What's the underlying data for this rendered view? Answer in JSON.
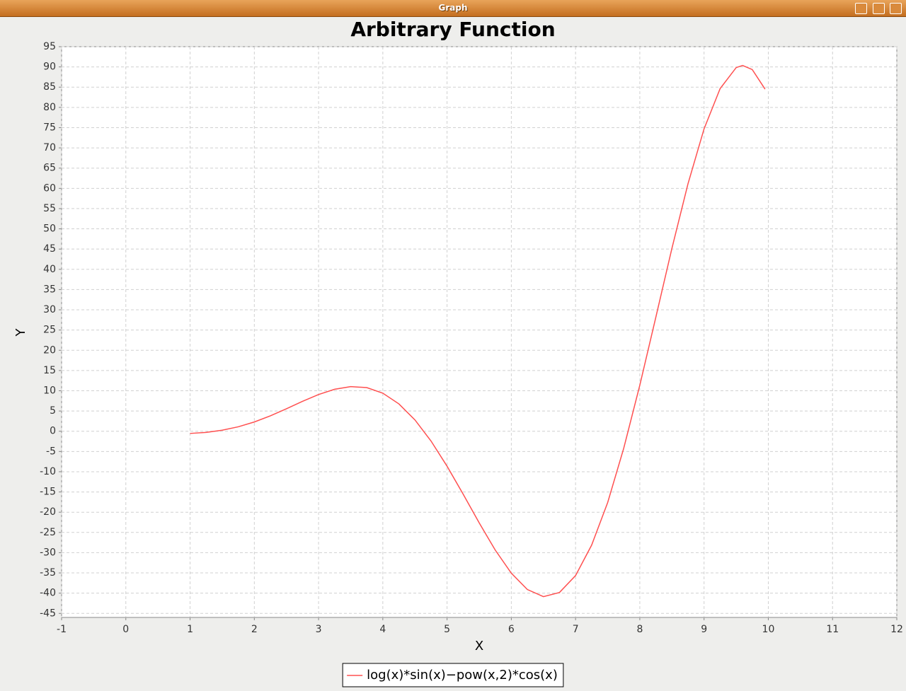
{
  "window": {
    "title": "Graph"
  },
  "chart_data": {
    "type": "line",
    "title": "Arbitrary Function",
    "x_label": "X",
    "y_label": "Y",
    "x": [
      1,
      1.25,
      1.5,
      1.75,
      2,
      2.25,
      2.5,
      2.75,
      3,
      3.25,
      3.5,
      3.75,
      4,
      4.25,
      4.5,
      4.75,
      5,
      5.25,
      5.5,
      5.75,
      6,
      6.25,
      6.5,
      6.75,
      7,
      7.25,
      7.5,
      7.75,
      8,
      8.25,
      8.5,
      8.75,
      9,
      9.25,
      9.5,
      9.6,
      9.75,
      9.95
    ],
    "series": [
      {
        "name": "log(x)*sin(x)−pow(x,2)*cos(x)",
        "color": "#ff5050",
        "values": [
          -0.54,
          -0.28,
          0.25,
          1.1,
          2.29,
          3.81,
          5.56,
          7.38,
          9.07,
          10.37,
          11.03,
          10.78,
          9.41,
          6.76,
          2.8,
          -2.41,
          -8.64,
          -15.54,
          -22.64,
          -29.36,
          -35.07,
          -39.1,
          -40.86,
          -39.83,
          -35.66,
          -28.14,
          -17.61,
          -4.19,
          11.37,
          28.2,
          45.2,
          61.13,
          74.7,
          84.64,
          89.83,
          90.36,
          89.35,
          84.5
        ]
      }
    ],
    "xlim": [
      -1,
      12
    ],
    "xticks": [
      -1,
      0,
      1,
      2,
      3,
      4,
      5,
      6,
      7,
      8,
      9,
      10,
      11,
      12
    ],
    "ylim": [
      -46,
      95
    ],
    "yticks": [
      -45,
      -40,
      -35,
      -30,
      -25,
      -20,
      -15,
      -10,
      -5,
      0,
      5,
      10,
      15,
      20,
      25,
      30,
      35,
      40,
      45,
      50,
      55,
      60,
      65,
      70,
      75,
      80,
      85,
      90,
      95
    ],
    "grid": true,
    "legend": "bottom"
  }
}
